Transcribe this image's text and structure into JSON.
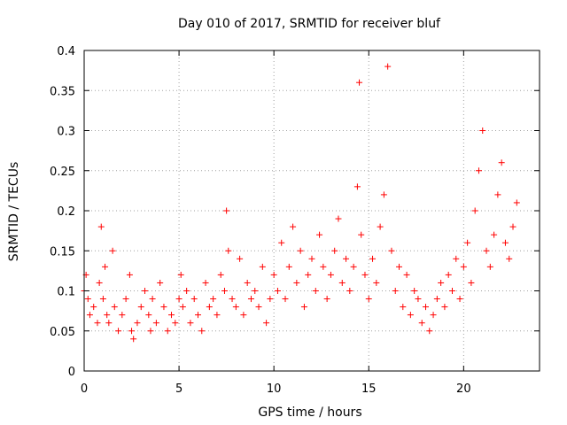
{
  "chart_data": {
    "type": "scatter",
    "title": "Day 010 of 2017, SRMTID for receiver bluf",
    "xlabel": "GPS time / hours",
    "ylabel": "SRMTID / TECUs",
    "xlim": [
      0,
      24
    ],
    "ylim": [
      0,
      0.4
    ],
    "xticks": [
      0,
      5,
      10,
      15,
      20
    ],
    "xtick_labels": [
      "0",
      "5",
      "10",
      "15",
      "20"
    ],
    "yticks": [
      0,
      0.05,
      0.1,
      0.15,
      0.2,
      0.25,
      0.3,
      0.35,
      0.4
    ],
    "ytick_labels": [
      "0",
      "0.05",
      "0.1",
      "0.15",
      "0.2",
      "0.25",
      "0.3",
      "0.35",
      "0.4"
    ],
    "grid": true,
    "marker": "plus",
    "color": "#ff0000",
    "series": [
      {
        "name": "SRMTID",
        "x": [
          0.0,
          0.1,
          0.2,
          0.3,
          0.5,
          0.7,
          0.8,
          0.9,
          1.0,
          1.1,
          1.2,
          1.3,
          1.5,
          1.6,
          1.8,
          2.0,
          2.2,
          2.4,
          2.5,
          2.6,
          2.8,
          3.0,
          3.2,
          3.4,
          3.5,
          3.6,
          3.8,
          4.0,
          4.2,
          4.4,
          4.6,
          4.8,
          5.0,
          5.1,
          5.2,
          5.4,
          5.6,
          5.8,
          6.0,
          6.2,
          6.4,
          6.6,
          6.8,
          7.0,
          7.2,
          7.4,
          7.5,
          7.6,
          7.8,
          8.0,
          8.2,
          8.4,
          8.6,
          8.8,
          9.0,
          9.2,
          9.4,
          9.6,
          9.8,
          10.0,
          10.2,
          10.4,
          10.6,
          10.8,
          11.0,
          11.2,
          11.4,
          11.6,
          11.8,
          12.0,
          12.2,
          12.4,
          12.6,
          12.8,
          13.0,
          13.2,
          13.4,
          13.6,
          13.8,
          14.0,
          14.2,
          14.4,
          14.5,
          14.6,
          14.8,
          15.0,
          15.2,
          15.4,
          15.6,
          15.8,
          16.0,
          16.2,
          16.4,
          16.6,
          16.8,
          17.0,
          17.2,
          17.4,
          17.6,
          17.8,
          18.0,
          18.2,
          18.4,
          18.6,
          18.8,
          19.0,
          19.2,
          19.4,
          19.6,
          19.8,
          20.0,
          20.2,
          20.4,
          20.6,
          20.8,
          21.0,
          21.2,
          21.4,
          21.6,
          21.8,
          22.0,
          22.2,
          22.4,
          22.6,
          22.8
        ],
        "y": [
          0.1,
          0.12,
          0.09,
          0.07,
          0.08,
          0.06,
          0.11,
          0.18,
          0.09,
          0.13,
          0.07,
          0.06,
          0.15,
          0.08,
          0.05,
          0.07,
          0.09,
          0.12,
          0.05,
          0.04,
          0.06,
          0.08,
          0.1,
          0.07,
          0.05,
          0.09,
          0.06,
          0.11,
          0.08,
          0.05,
          0.07,
          0.06,
          0.09,
          0.12,
          0.08,
          0.1,
          0.06,
          0.09,
          0.07,
          0.05,
          0.11,
          0.08,
          0.09,
          0.07,
          0.12,
          0.1,
          0.2,
          0.15,
          0.09,
          0.08,
          0.14,
          0.07,
          0.11,
          0.09,
          0.1,
          0.08,
          0.13,
          0.06,
          0.09,
          0.12,
          0.1,
          0.16,
          0.09,
          0.13,
          0.18,
          0.11,
          0.15,
          0.08,
          0.12,
          0.14,
          0.1,
          0.17,
          0.13,
          0.09,
          0.12,
          0.15,
          0.19,
          0.11,
          0.14,
          0.1,
          0.13,
          0.23,
          0.36,
          0.17,
          0.12,
          0.09,
          0.14,
          0.11,
          0.18,
          0.22,
          0.38,
          0.15,
          0.1,
          0.13,
          0.08,
          0.12,
          0.07,
          0.1,
          0.09,
          0.06,
          0.08,
          0.05,
          0.07,
          0.09,
          0.11,
          0.08,
          0.12,
          0.1,
          0.14,
          0.09,
          0.13,
          0.16,
          0.11,
          0.2,
          0.25,
          0.3,
          0.15,
          0.13,
          0.17,
          0.22,
          0.26,
          0.16,
          0.14,
          0.18,
          0.21
        ]
      }
    ]
  }
}
